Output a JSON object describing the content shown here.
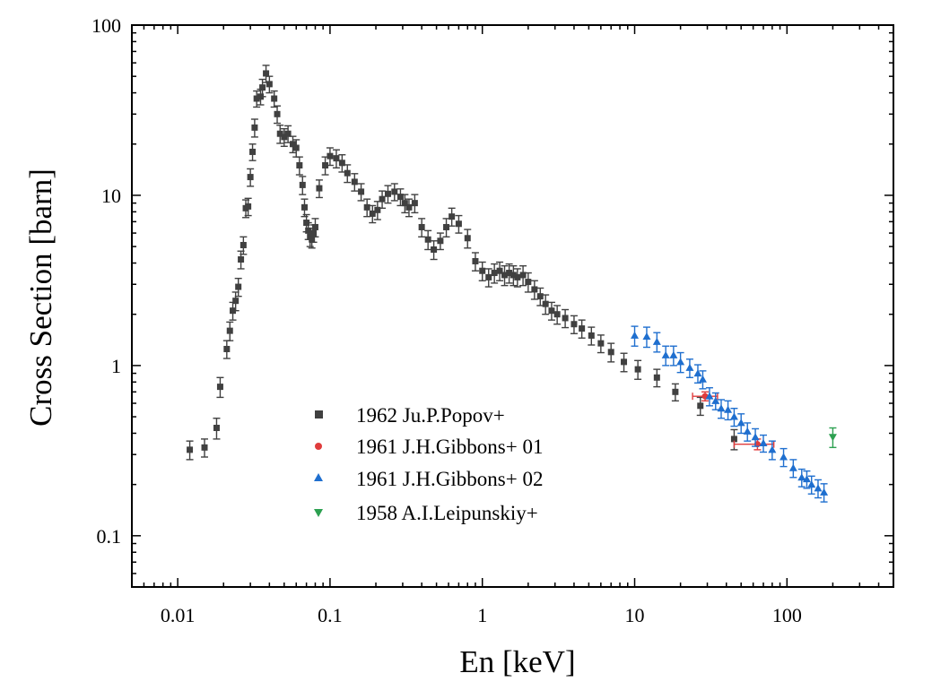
{
  "chart_data": {
    "type": "scatter",
    "title": "",
    "xlabel": "En [keV]",
    "ylabel": "Cross Section [barn]",
    "xscale": "log",
    "yscale": "log",
    "xlim": [
      0.005,
      500
    ],
    "ylim": [
      0.05,
      100
    ],
    "x_ticks": [
      0.01,
      0.1,
      1,
      10,
      100
    ],
    "x_tick_labels": [
      "0.01",
      "0.1",
      "1",
      "10",
      "100"
    ],
    "y_ticks": [
      0.1,
      1,
      10,
      100
    ],
    "y_tick_labels": [
      "0.1",
      "1",
      "10",
      "100"
    ],
    "grid": false,
    "legend_position": "bottom-center",
    "series": [
      {
        "name": "1962 Ju.P.Popov+",
        "marker": "square",
        "color": "#404040",
        "points": [
          [
            0.012,
            0.32,
            0.04
          ],
          [
            0.015,
            0.33,
            0.04
          ],
          [
            0.018,
            0.43,
            0.06
          ],
          [
            0.019,
            0.75,
            0.1
          ],
          [
            0.021,
            1.25,
            0.15
          ],
          [
            0.022,
            1.6,
            0.2
          ],
          [
            0.023,
            2.1,
            0.25
          ],
          [
            0.024,
            2.4,
            0.3
          ],
          [
            0.025,
            2.9,
            0.35
          ],
          [
            0.026,
            4.2,
            0.5
          ],
          [
            0.027,
            5.1,
            0.6
          ],
          [
            0.028,
            8.4,
            1.0
          ],
          [
            0.029,
            8.6,
            1.0
          ],
          [
            0.03,
            12.8,
            1.5
          ],
          [
            0.031,
            18,
            2.0
          ],
          [
            0.032,
            25,
            3.0
          ],
          [
            0.033,
            37,
            4.0
          ],
          [
            0.035,
            38,
            4.0
          ],
          [
            0.036,
            43,
            5.0
          ],
          [
            0.038,
            52,
            6.0
          ],
          [
            0.04,
            45,
            5.0
          ],
          [
            0.043,
            37,
            4.0
          ],
          [
            0.045,
            30,
            3.5
          ],
          [
            0.047,
            23,
            2.8
          ],
          [
            0.05,
            22,
            2.6
          ],
          [
            0.053,
            23,
            2.6
          ],
          [
            0.057,
            20,
            2.2
          ],
          [
            0.06,
            19,
            2.2
          ],
          [
            0.063,
            15,
            1.8
          ],
          [
            0.066,
            11.5,
            1.4
          ],
          [
            0.068,
            8.5,
            1.0
          ],
          [
            0.07,
            6.9,
            0.8
          ],
          [
            0.072,
            6.2,
            0.7
          ],
          [
            0.074,
            5.7,
            0.7
          ],
          [
            0.076,
            5.5,
            0.6
          ],
          [
            0.078,
            6.0,
            0.7
          ],
          [
            0.08,
            6.5,
            0.8
          ],
          [
            0.085,
            11,
            1.3
          ],
          [
            0.093,
            15,
            1.8
          ],
          [
            0.1,
            17,
            2.0
          ],
          [
            0.11,
            16.5,
            2.0
          ],
          [
            0.12,
            15.5,
            1.8
          ],
          [
            0.13,
            13.5,
            1.6
          ],
          [
            0.145,
            12,
            1.4
          ],
          [
            0.16,
            10.5,
            1.2
          ],
          [
            0.175,
            8.5,
            1.0
          ],
          [
            0.19,
            7.8,
            0.9
          ],
          [
            0.205,
            8.2,
            1.0
          ],
          [
            0.22,
            9.5,
            1.1
          ],
          [
            0.24,
            10.2,
            1.2
          ],
          [
            0.265,
            10.5,
            1.2
          ],
          [
            0.29,
            9.8,
            1.1
          ],
          [
            0.31,
            9.0,
            1.1
          ],
          [
            0.33,
            8.5,
            1.0
          ],
          [
            0.36,
            9.0,
            1.1
          ],
          [
            0.4,
            6.5,
            0.8
          ],
          [
            0.44,
            5.5,
            0.7
          ],
          [
            0.48,
            4.8,
            0.6
          ],
          [
            0.53,
            5.4,
            0.6
          ],
          [
            0.58,
            6.5,
            0.8
          ],
          [
            0.63,
            7.5,
            0.9
          ],
          [
            0.7,
            6.8,
            0.8
          ],
          [
            0.8,
            5.6,
            0.7
          ],
          [
            0.9,
            4.1,
            0.5
          ],
          [
            1.0,
            3.6,
            0.45
          ],
          [
            1.1,
            3.3,
            0.4
          ],
          [
            1.2,
            3.5,
            0.45
          ],
          [
            1.3,
            3.6,
            0.45
          ],
          [
            1.4,
            3.4,
            0.45
          ],
          [
            1.5,
            3.5,
            0.45
          ],
          [
            1.6,
            3.4,
            0.45
          ],
          [
            1.7,
            3.3,
            0.4
          ],
          [
            1.85,
            3.4,
            0.45
          ],
          [
            2.0,
            3.1,
            0.4
          ],
          [
            2.2,
            2.8,
            0.35
          ],
          [
            2.4,
            2.55,
            0.3
          ],
          [
            2.6,
            2.3,
            0.3
          ],
          [
            2.85,
            2.1,
            0.25
          ],
          [
            3.1,
            2.0,
            0.25
          ],
          [
            3.5,
            1.9,
            0.23
          ],
          [
            4.0,
            1.75,
            0.21
          ],
          [
            4.5,
            1.65,
            0.2
          ],
          [
            5.2,
            1.5,
            0.18
          ],
          [
            6.0,
            1.35,
            0.16
          ],
          [
            7.0,
            1.2,
            0.15
          ],
          [
            8.5,
            1.05,
            0.13
          ],
          [
            10.5,
            0.95,
            0.12
          ],
          [
            14.0,
            0.85,
            0.1
          ],
          [
            18.5,
            0.7,
            0.08
          ],
          [
            27.0,
            0.58,
            0.07
          ],
          [
            45.0,
            0.37,
            0.05
          ]
        ]
      },
      {
        "name": "1961 J.H.Gibbons+ 01",
        "marker": "circle",
        "color": "#e03c3c",
        "points": [
          [
            29.0,
            0.66,
            0.04,
            24.0,
            35.0
          ],
          [
            64.0,
            0.345,
            0.025,
            45.0,
            82.0
          ]
        ]
      },
      {
        "name": "1961 J.H.Gibbons+ 02",
        "marker": "triangle-up",
        "color": "#1f6fcf",
        "points": [
          [
            10.0,
            1.5,
            0.2
          ],
          [
            12.0,
            1.48,
            0.2
          ],
          [
            14.0,
            1.38,
            0.18
          ],
          [
            16.0,
            1.15,
            0.15
          ],
          [
            18.0,
            1.15,
            0.15
          ],
          [
            20.0,
            1.05,
            0.14
          ],
          [
            23.0,
            0.97,
            0.12
          ],
          [
            26.0,
            0.9,
            0.11
          ],
          [
            28.0,
            0.83,
            0.1
          ],
          [
            31.0,
            0.66,
            0.08
          ],
          [
            34.0,
            0.62,
            0.07
          ],
          [
            37.0,
            0.56,
            0.07
          ],
          [
            41.0,
            0.55,
            0.07
          ],
          [
            45.0,
            0.5,
            0.06
          ],
          [
            50.0,
            0.46,
            0.06
          ],
          [
            55.0,
            0.41,
            0.05
          ],
          [
            62.0,
            0.38,
            0.045
          ],
          [
            70.0,
            0.35,
            0.04
          ],
          [
            80.0,
            0.32,
            0.04
          ],
          [
            95.0,
            0.29,
            0.035
          ],
          [
            110.0,
            0.25,
            0.03
          ],
          [
            125.0,
            0.22,
            0.026
          ],
          [
            135.0,
            0.215,
            0.025
          ],
          [
            145.0,
            0.2,
            0.024
          ],
          [
            160.0,
            0.19,
            0.023
          ],
          [
            175.0,
            0.18,
            0.022
          ]
        ]
      },
      {
        "name": "1958 A.I.Leipunskiy+",
        "marker": "triangle-down",
        "color": "#2ca050",
        "points": [
          [
            200.0,
            0.38,
            0.05
          ]
        ]
      }
    ]
  }
}
